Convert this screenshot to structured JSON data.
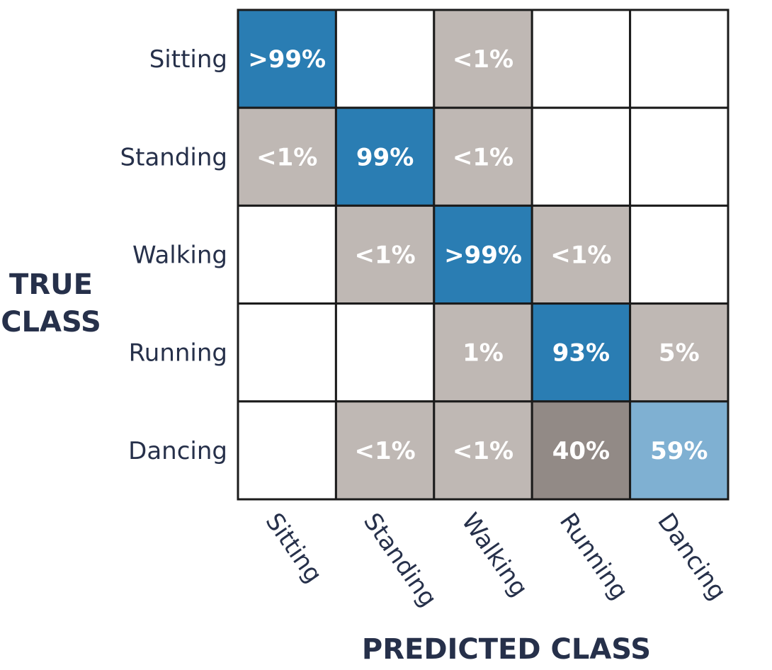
{
  "chart_data": {
    "type": "heatmap",
    "rows": [
      "Sitting",
      "Standing",
      "Walking",
      "Running",
      "Dancing"
    ],
    "columns": [
      "Sitting",
      "Standing",
      "Walking",
      "Running",
      "Dancing"
    ],
    "ylabel": "TRUE CLASS",
    "xlabel": "PREDICTED CLASS",
    "cells": [
      [
        ">99%",
        "",
        "<1%",
        "",
        ""
      ],
      [
        "<1%",
        "99%",
        "<1%",
        "",
        ""
      ],
      [
        "",
        "<1%",
        ">99%",
        "<1%",
        ""
      ],
      [
        "",
        "",
        "1%",
        "93%",
        "5%"
      ],
      [
        "",
        "<1%",
        "<1%",
        "40%",
        "59%"
      ]
    ],
    "cell_colors": [
      [
        "#2a7db3",
        "#ffffff",
        "#bfb8b4",
        "#ffffff",
        "#ffffff"
      ],
      [
        "#bfb8b4",
        "#2a7db3",
        "#bfb8b4",
        "#ffffff",
        "#ffffff"
      ],
      [
        "#ffffff",
        "#bfb8b4",
        "#2a7db3",
        "#bfb8b4",
        "#ffffff"
      ],
      [
        "#ffffff",
        "#ffffff",
        "#bfb8b4",
        "#2a7db3",
        "#bfb8b4"
      ],
      [
        "#ffffff",
        "#bfb8b4",
        "#bfb8b4",
        "#928a86",
        "#7fb0d2"
      ]
    ]
  }
}
